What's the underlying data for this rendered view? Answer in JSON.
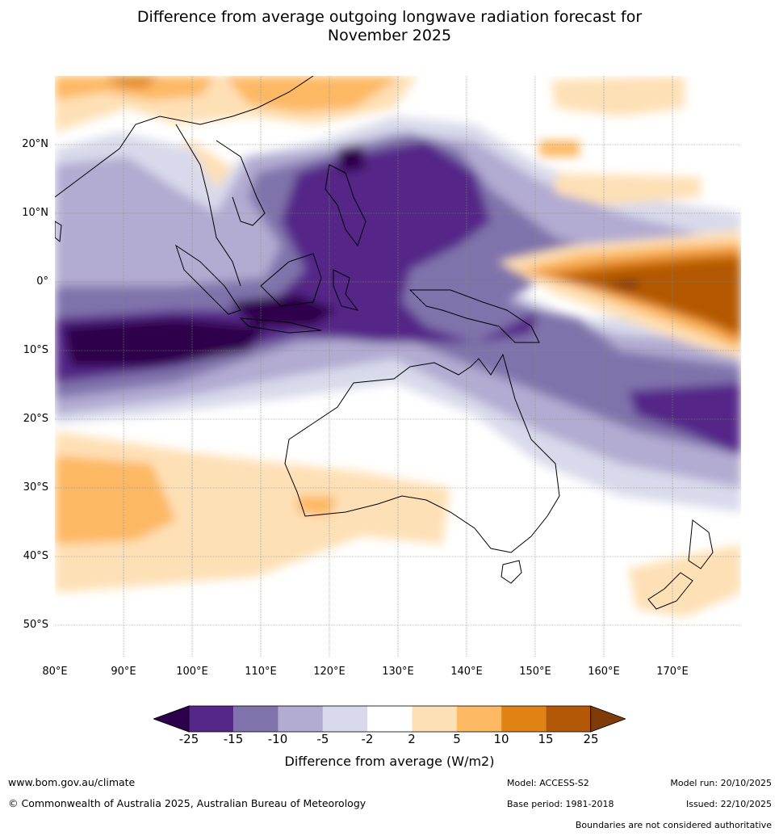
{
  "title": {
    "line1": "Difference from average outgoing longwave radiation forecast for",
    "line2": "November 2025"
  },
  "map": {
    "lat_labels": [
      "20°N",
      "10°N",
      "0°",
      "10°S",
      "20°S",
      "30°S",
      "40°S",
      "50°S"
    ],
    "lon_labels": [
      "80°E",
      "90°E",
      "100°E",
      "110°E",
      "120°E",
      "130°E",
      "140°E",
      "150°E",
      "160°E",
      "170°E"
    ],
    "extent": {
      "lon": [
        80,
        180
      ],
      "lat": [
        -55,
        30
      ]
    }
  },
  "legend": {
    "ticks": [
      "-25",
      "-15",
      "-10",
      "-5",
      "-2",
      "2",
      "5",
      "10",
      "15",
      "25"
    ],
    "colors": [
      "#2d004b",
      "#542788",
      "#8073ac",
      "#b2abd2",
      "#d8daeb",
      "#ffffff",
      "#fee0b6",
      "#fdb863",
      "#e08214",
      "#b35806",
      "#7f3b08"
    ],
    "label": "Difference from average (W/m2)"
  },
  "footer": {
    "url": "www.bom.gov.au/climate",
    "copyright": "© Commonwealth of Australia 2025, Australian Bureau of Meteorology",
    "model": "Model: ACCESS-S2",
    "model_run": "Model run: 20/10/2025",
    "base_period": "Base period: 1981-2018",
    "issued": "Issued: 22/10/2025",
    "disclaimer": "Boundaries are not considered authoritative"
  }
}
